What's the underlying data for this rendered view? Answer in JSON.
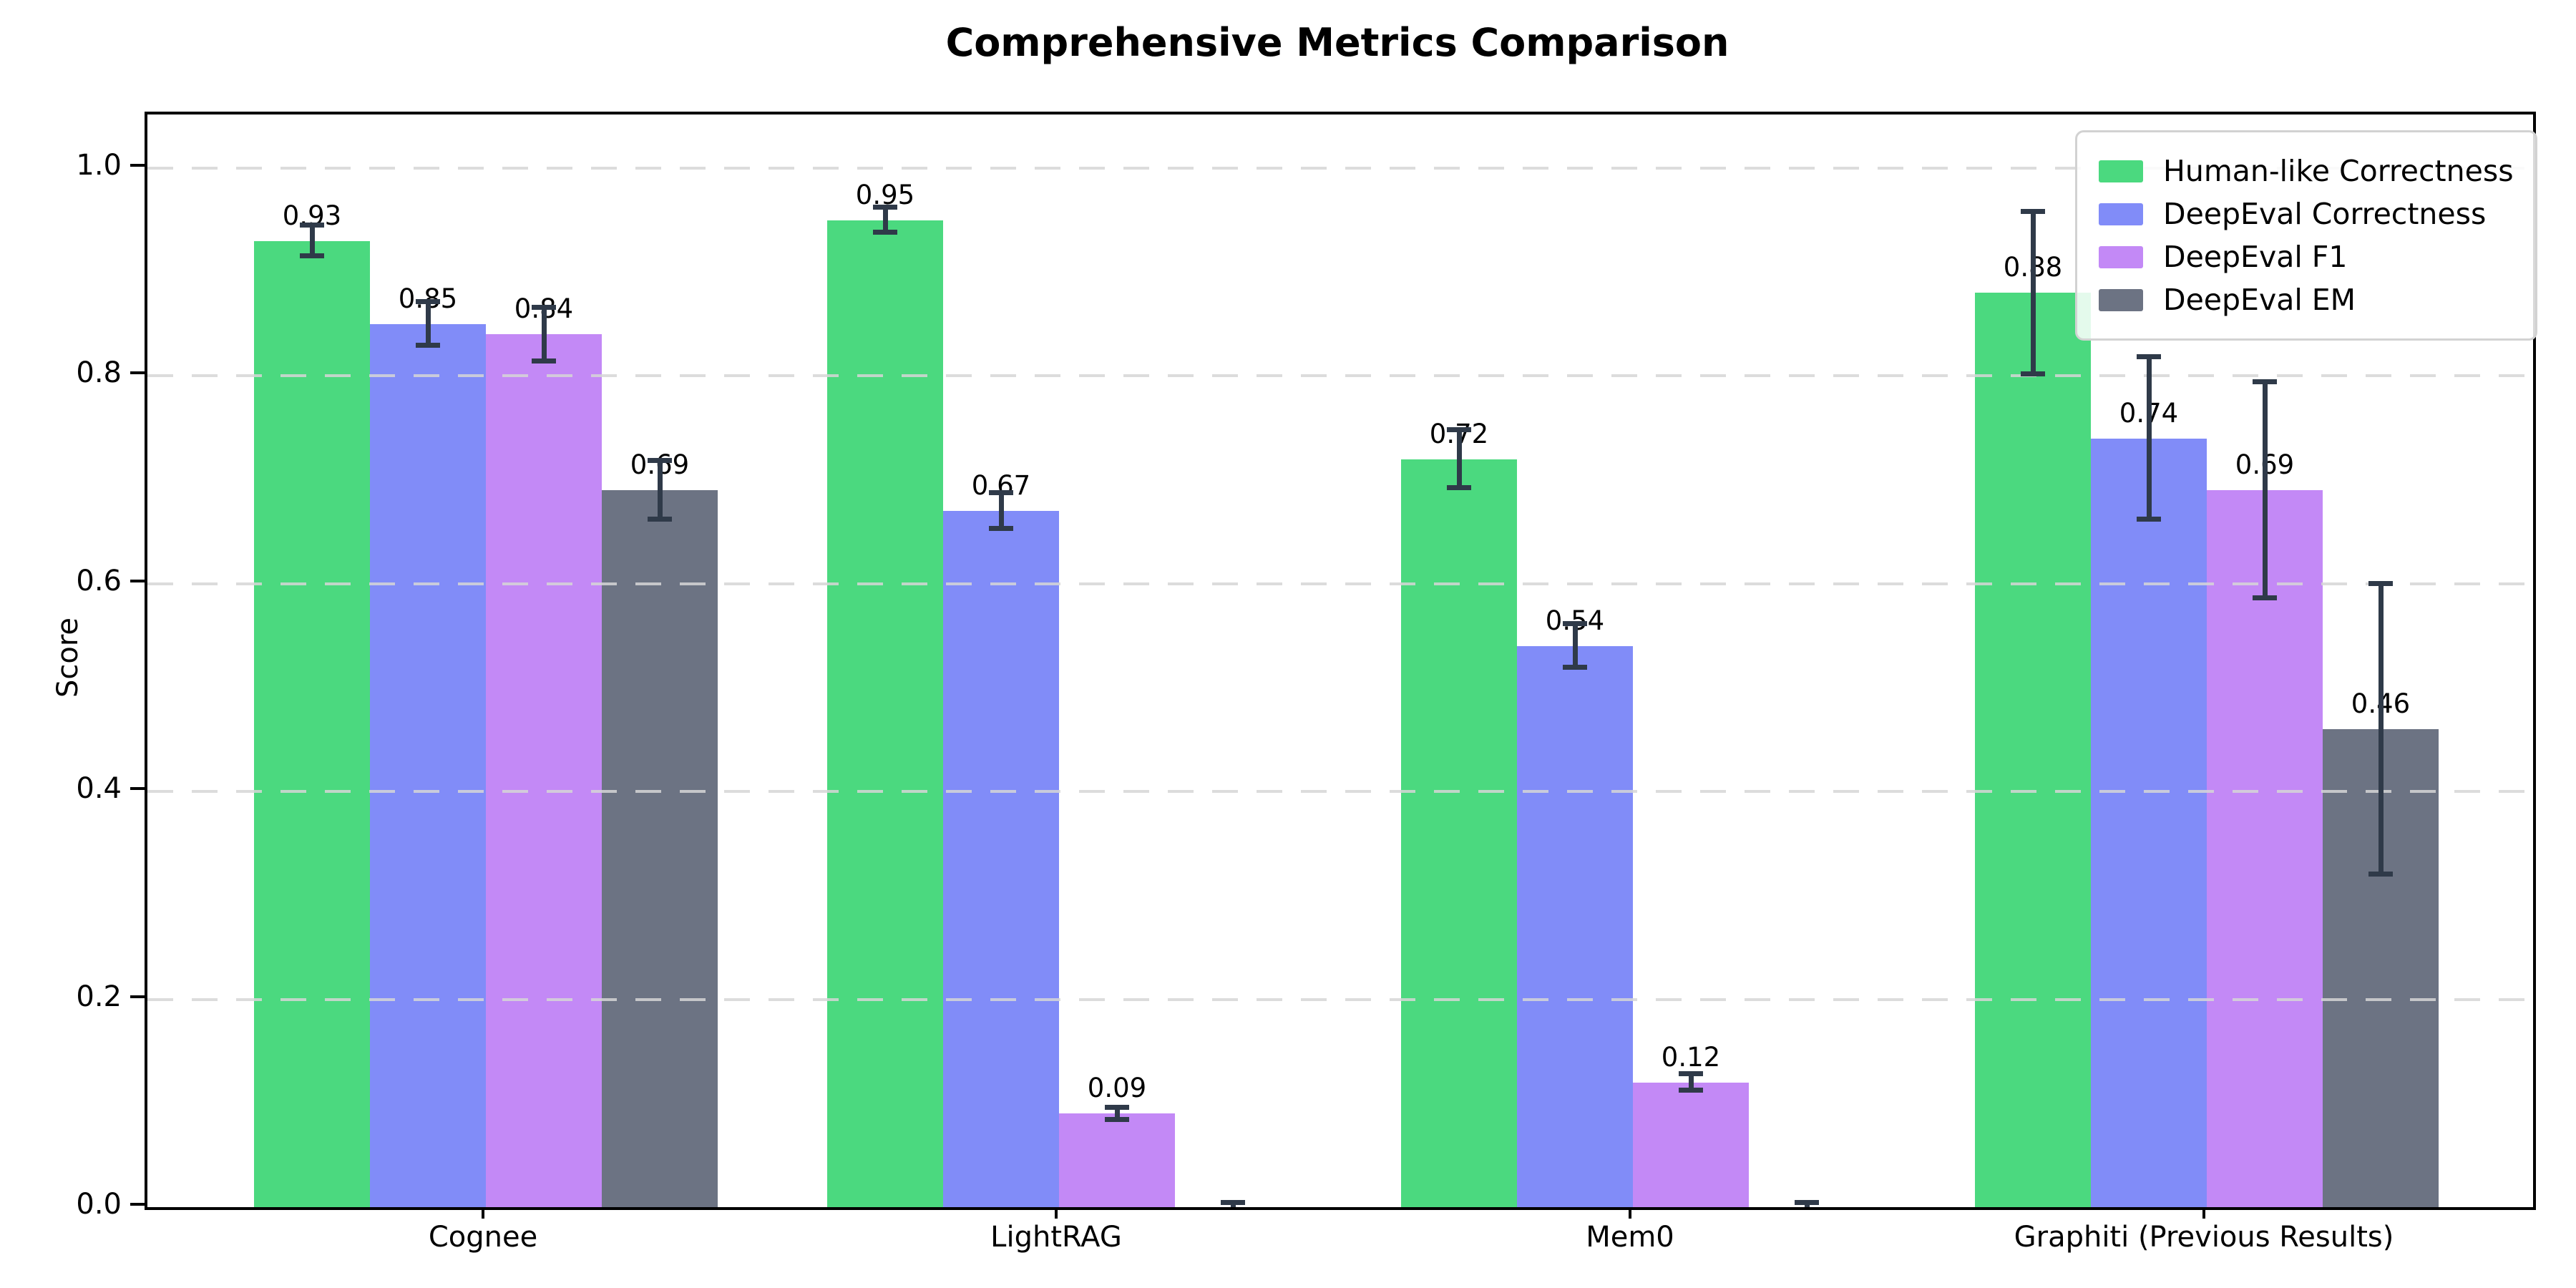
{
  "title": "Comprehensive Metrics Comparison",
  "chart_data": {
    "type": "bar",
    "title": "Comprehensive Metrics Comparison",
    "xlabel": "",
    "ylabel": "Score",
    "ylim": [
      0,
      1.05
    ],
    "grid": {
      "axis": "y",
      "style": "dashed",
      "color": "#d6d6d6"
    },
    "legend_position": "upper right",
    "error_bar_color": "#2f3a49",
    "axis_color": "#000000",
    "yticks": [
      {
        "value": 0.0,
        "label": "0.0"
      },
      {
        "value": 0.2,
        "label": "0.2"
      },
      {
        "value": 0.4,
        "label": "0.4"
      },
      {
        "value": 0.6,
        "label": "0.6"
      },
      {
        "value": 0.8,
        "label": "0.8"
      },
      {
        "value": 1.0,
        "label": "1.0"
      }
    ],
    "categories": [
      "Cognee",
      "LightRAG",
      "Mem0",
      "Graphiti (Previous Results)"
    ],
    "series": [
      {
        "name": "Human-like Correctness",
        "color": "#4bd97f",
        "values": [
          0.93,
          0.95,
          0.72,
          0.88
        ],
        "errors": [
          0.015,
          0.012,
          0.028,
          0.078
        ],
        "bar_labels": [
          "0.93",
          "0.95",
          "0.72",
          "0.88"
        ]
      },
      {
        "name": "DeepEval Correctness",
        "color": "#818cf8",
        "values": [
          0.85,
          0.67,
          0.54,
          0.74
        ],
        "errors": [
          0.021,
          0.017,
          0.021,
          0.078
        ],
        "bar_labels": [
          "0.85",
          "0.67",
          "0.54",
          "0.74"
        ]
      },
      {
        "name": "DeepEval F1",
        "color": "#c389f6",
        "values": [
          0.84,
          0.09,
          0.12,
          0.69
        ],
        "errors": [
          0.026,
          0.006,
          0.008,
          0.104
        ],
        "bar_labels": [
          "0.84",
          "0.09",
          "0.12",
          "0.69"
        ]
      },
      {
        "name": "DeepEval EM",
        "color": "#6c7383",
        "values": [
          0.69,
          0.0,
          0.0,
          0.46
        ],
        "errors": [
          0.028,
          0.004,
          0.004,
          0.14
        ],
        "bar_labels": [
          "0.69",
          null,
          null,
          "0.46"
        ]
      }
    ]
  }
}
